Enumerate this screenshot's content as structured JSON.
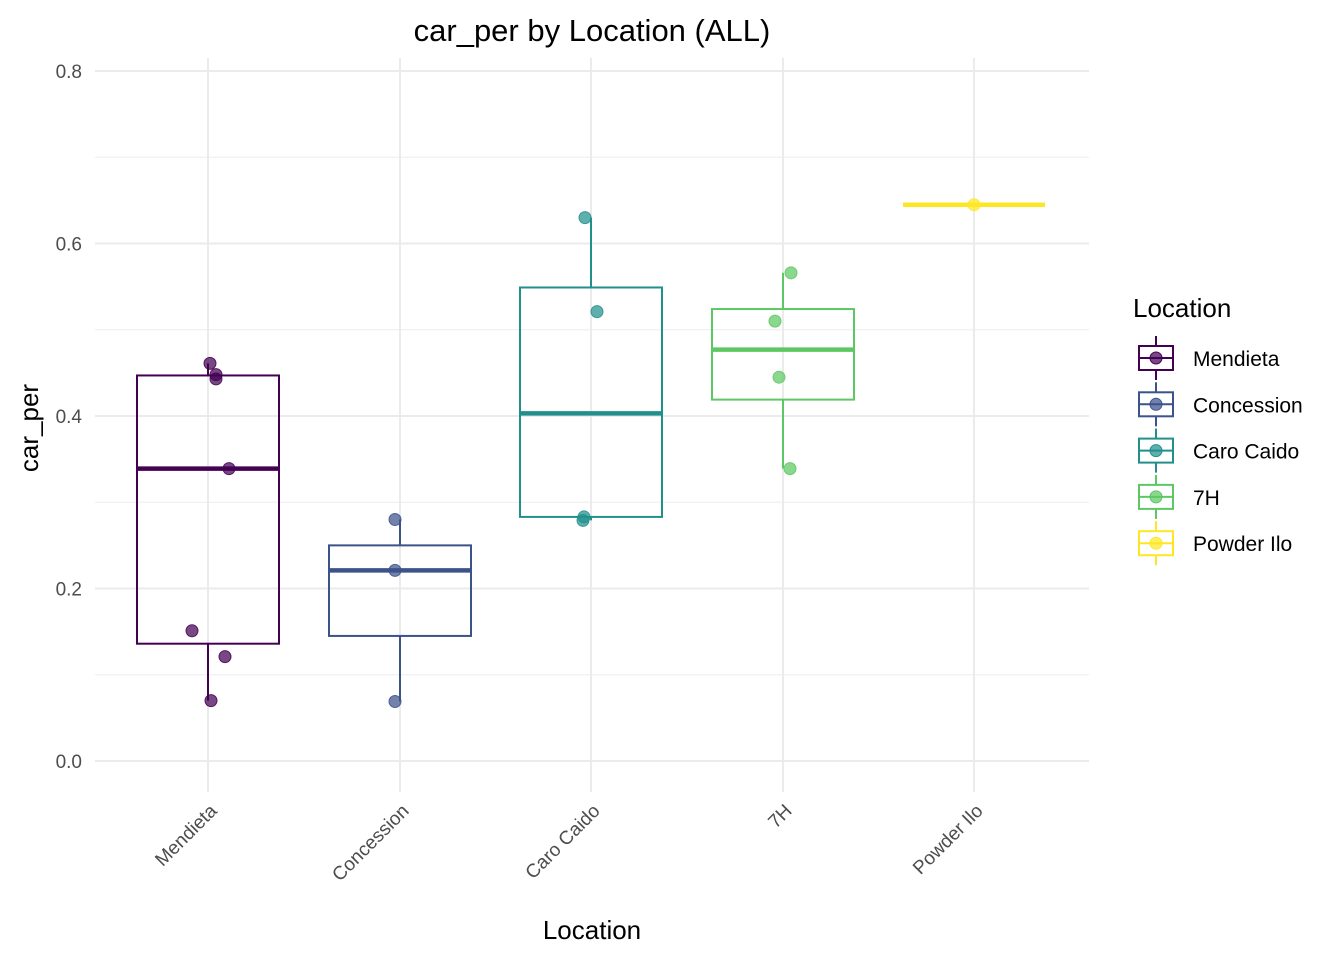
{
  "chart_data": {
    "type": "box",
    "title": "car_per by Location (ALL)",
    "xlabel": "Location",
    "ylabel": "car_per",
    "ylim": [
      -0.03,
      0.81
    ],
    "yticks": [
      0.0,
      0.2,
      0.4,
      0.6,
      0.8
    ],
    "ytick_labels": [
      "0.0",
      "0.2",
      "0.4",
      "0.6",
      "0.8"
    ],
    "grid": true,
    "legend": {
      "title": "Location",
      "position": "right"
    },
    "categories": [
      "Mendieta",
      "Concession",
      "Caro Caido",
      "7H",
      "Powder Ilo"
    ],
    "series": [
      {
        "name": "Mendieta",
        "color": "#440154",
        "box": {
          "min": 0.07,
          "q1": 0.136,
          "median": 0.339,
          "q3": 0.447,
          "max": 0.461
        },
        "points": [
          0.461,
          0.448,
          0.443,
          0.339,
          0.151,
          0.121,
          0.07
        ]
      },
      {
        "name": "Concession",
        "color": "#3b528b",
        "box": {
          "min": 0.069,
          "q1": 0.145,
          "median": 0.221,
          "q3": 0.25,
          "max": 0.28
        },
        "points": [
          0.28,
          0.221,
          0.069
        ]
      },
      {
        "name": "Caro Caido",
        "color": "#21908d",
        "box": {
          "min": 0.279,
          "q1": 0.283,
          "median": 0.403,
          "q3": 0.549,
          "max": 0.63
        },
        "points": [
          0.63,
          0.521,
          0.283,
          0.279
        ]
      },
      {
        "name": "7H",
        "color": "#5dc863",
        "box": {
          "min": 0.339,
          "q1": 0.419,
          "median": 0.477,
          "q3": 0.524,
          "max": 0.566
        },
        "points": [
          0.566,
          0.51,
          0.445,
          0.339
        ]
      },
      {
        "name": "Powder Ilo",
        "color": "#fde725",
        "box": {
          "min": 0.645,
          "q1": 0.645,
          "median": 0.645,
          "q3": 0.645,
          "max": 0.645
        },
        "points": [
          0.645
        ]
      }
    ]
  }
}
